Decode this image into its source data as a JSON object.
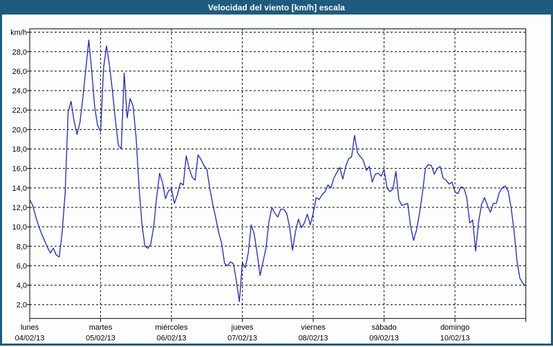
{
  "window": {
    "title": "Velocidad del viento [km/h] escala",
    "title_bar_color": "#1e5b7e",
    "background_color": "#fcfefc"
  },
  "chart_data": {
    "type": "line",
    "title": "Velocidad del viento [km/h] escala",
    "y_unit_label": "km/h",
    "grid": "dashed",
    "legend": "none",
    "ylim": [
      0.58,
      30.35
    ],
    "y_ticks": [
      {
        "value": 2,
        "label": "2,0"
      },
      {
        "value": 4,
        "label": "4,0"
      },
      {
        "value": 6,
        "label": "6,0"
      },
      {
        "value": 8,
        "label": "8,0"
      },
      {
        "value": 10,
        "label": "10,0"
      },
      {
        "value": 12,
        "label": "12,0"
      },
      {
        "value": 14,
        "label": "14,0"
      },
      {
        "value": 16,
        "label": "16,0"
      },
      {
        "value": 18,
        "label": "18,0"
      },
      {
        "value": 20,
        "label": "20,0"
      },
      {
        "value": 22,
        "label": "22,0"
      },
      {
        "value": 24,
        "label": "24,0"
      },
      {
        "value": 26,
        "label": "26,0"
      },
      {
        "value": 28,
        "label": "28,0"
      },
      {
        "value": 30,
        "label": ""
      }
    ],
    "x_days": [
      {
        "weekday": "lunes",
        "date": "04/02/13"
      },
      {
        "weekday": "martes",
        "date": "05/02/13"
      },
      {
        "weekday": "miércoles",
        "date": "06/02/13"
      },
      {
        "weekday": "jueves",
        "date": "07/02/13"
      },
      {
        "weekday": "viernes",
        "date": "08/02/13"
      },
      {
        "weekday": "sábado",
        "date": "09/02/13"
      },
      {
        "weekday": "domingo",
        "date": "10/02/13"
      }
    ],
    "points_per_day": 24,
    "series": [
      {
        "name": "velocidad_viento_kmh",
        "color": "#2121c8",
        "values": [
          12.8,
          12.2,
          11.1,
          10.1,
          9.3,
          8.6,
          7.9,
          7.3,
          7.8,
          7.1,
          6.9,
          9.5,
          13.5,
          21.8,
          22.9,
          20.9,
          19.5,
          20.7,
          23.3,
          26.2,
          29.2,
          26.0,
          22.3,
          20.4,
          19.8,
          26.3,
          28.6,
          26.6,
          24.0,
          21.0,
          18.4,
          18.0,
          25.8,
          21.2,
          23.2,
          22.4,
          19.3,
          14.2,
          10.3,
          8.0,
          7.8,
          8.2,
          10.1,
          13.1,
          15.5,
          14.5,
          12.9,
          13.7,
          13.9,
          12.4,
          13.3,
          14.5,
          14.3,
          17.3,
          16.0,
          15.1,
          14.8,
          17.4,
          16.9,
          16.3,
          15.9,
          13.9,
          12.3,
          10.9,
          9.4,
          8.3,
          6.2,
          6.0,
          6.4,
          6.2,
          4.4,
          2.3,
          6.3,
          5.8,
          7.3,
          10.2,
          9.3,
          7.3,
          5.0,
          6.4,
          7.8,
          10.5,
          12.0,
          11.4,
          11.0,
          11.8,
          11.8,
          11.4,
          10.0,
          7.6,
          9.5,
          10.8,
          9.9,
          10.4,
          11.3,
          10.2,
          11.4,
          13.0,
          12.8,
          13.3,
          13.6,
          14.3,
          14.0,
          15.0,
          15.6,
          16.1,
          14.9,
          16.2,
          17.0,
          17.2,
          19.4,
          17.6,
          17.2,
          16.8,
          15.8,
          16.2,
          14.6,
          15.4,
          15.5,
          15.2,
          15.9,
          14.0,
          13.6,
          13.9,
          15.7,
          12.8,
          12.2,
          12.3,
          12.4,
          10.0,
          8.6,
          9.7,
          11.4,
          13.5,
          16.0,
          16.4,
          16.3,
          15.4,
          16.0,
          16.2,
          15.0,
          14.8,
          14.4,
          14.6,
          13.6,
          13.4,
          14.1,
          14.0,
          13.0,
          10.4,
          10.7,
          7.5,
          10.5,
          12.3,
          13.0,
          12.2,
          11.5,
          12.4,
          12.4,
          13.5,
          14.0,
          14.2,
          13.7,
          12.0,
          9.6,
          6.5,
          4.7,
          4.2,
          3.9
        ]
      }
    ]
  }
}
